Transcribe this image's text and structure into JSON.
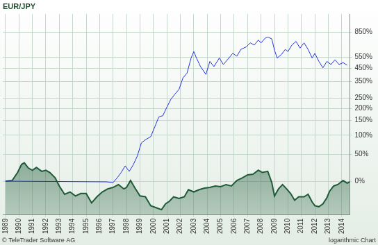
{
  "chart_data": {
    "type": "line",
    "title": "EUR/JPY",
    "annotations": [
      "© TeleTrader Software AG",
      "logarithmic Chart"
    ],
    "log": "y",
    "grid": true,
    "xlim": [
      1988.8,
      2014.6
    ],
    "xticks": [
      1989,
      1990,
      1991,
      1992,
      1993,
      1994,
      1995,
      1996,
      1997,
      1998,
      1999,
      2000,
      2001,
      2002,
      2003,
      2004,
      2005,
      2006,
      2007,
      2008,
      2009,
      2010,
      2011,
      2012,
      2013,
      2014
    ],
    "ylim": [
      -40,
      1150
    ],
    "yticks": [
      {
        "value": 0,
        "label": "0%"
      },
      {
        "value": 50,
        "label": "50%"
      },
      {
        "value": 100,
        "label": "100%"
      },
      {
        "value": 150,
        "label": "150%"
      },
      {
        "value": 200,
        "label": "200%"
      },
      {
        "value": 250,
        "label": "250%"
      },
      {
        "value": 350,
        "label": "350%"
      },
      {
        "value": 450,
        "label": "450%"
      },
      {
        "value": 550,
        "label": "550%"
      },
      {
        "value": 850,
        "label": "850%"
      }
    ],
    "series": [
      {
        "type": "line",
        "color": "#2233dd",
        "x": [
          1989.0,
          1996.5,
          1997.0,
          1997.3,
          1997.6,
          1997.9,
          1998.2,
          1998.5,
          1998.8,
          1999.1,
          1999.4,
          1999.8,
          2000.1,
          2000.4,
          2000.7,
          2001.0,
          2001.3,
          2001.6,
          2001.9,
          2002.2,
          2002.5,
          2002.8,
          2003.0,
          2003.2,
          2003.5,
          2003.9,
          2004.2,
          2004.5,
          2004.9,
          2005.2,
          2005.5,
          2005.9,
          2006.2,
          2006.5,
          2006.9,
          2007.2,
          2007.5,
          2007.8,
          2008.0,
          2008.3,
          2008.5,
          2008.8,
          2009.0,
          2009.2,
          2009.5,
          2009.8,
          2010.0,
          2010.3,
          2010.6,
          2010.9,
          2011.2,
          2011.5,
          2011.8,
          2012.0,
          2012.3,
          2012.6,
          2012.9,
          2013.2,
          2013.5,
          2013.8,
          2014.1,
          2014.4
        ],
        "values": [
          0,
          -1,
          -2,
          5,
          14,
          26,
          16,
          28,
          46,
          78,
          87,
          96,
          127,
          164,
          169,
          206,
          245,
          273,
          300,
          377,
          412,
          543,
          609,
          543,
          465,
          402,
          511,
          465,
          543,
          483,
          526,
          590,
          561,
          632,
          661,
          708,
          683,
          744,
          708,
          767,
          783,
          758,
          624,
          543,
          576,
          632,
          609,
          683,
          726,
          647,
          708,
          632,
          543,
          590,
          511,
          455,
          511,
          483,
          526,
          483,
          500,
          477
        ]
      },
      {
        "type": "area",
        "color": "#1e5a37",
        "x": [
          1989.0,
          1989.5,
          1989.9,
          1990.2,
          1990.4,
          1990.7,
          1991.0,
          1991.3,
          1991.7,
          1992.0,
          1992.3,
          1992.7,
          1993.0,
          1993.4,
          1993.8,
          1994.2,
          1994.6,
          1995.0,
          1995.4,
          1995.8,
          1996.2,
          1996.6,
          1997.0,
          1997.4,
          1997.8,
          1998.0,
          1998.3,
          1998.6,
          1999.0,
          1999.4,
          1999.8,
          2000.2,
          2000.6,
          2000.9,
          2001.2,
          2001.5,
          2001.9,
          2002.3,
          2002.6,
          2003.0,
          2003.4,
          2003.8,
          2004.2,
          2004.6,
          2005.0,
          2005.4,
          2005.8,
          2006.2,
          2006.6,
          2007.0,
          2007.4,
          2007.8,
          2008.1,
          2008.5,
          2008.8,
          2009.0,
          2009.3,
          2009.6,
          2009.9,
          2010.2,
          2010.5,
          2010.8,
          2011.2,
          2011.5,
          2011.8,
          2012.0,
          2012.3,
          2012.6,
          2012.9,
          2013.1,
          2013.4,
          2013.7,
          2013.9,
          2014.1,
          2014.4,
          2014.6
        ],
        "values": [
          0,
          1,
          14,
          29,
          32,
          22,
          18,
          23,
          16,
          18,
          14,
          5,
          -7,
          -18,
          -15,
          -20,
          -17,
          -17,
          -28,
          -21,
          -15,
          -11,
          -9,
          -5,
          -11,
          -9,
          1,
          -9,
          -20,
          -21,
          -31,
          -33,
          -35,
          -29,
          -26,
          -21,
          -23,
          -21,
          -12,
          -15,
          -12,
          -10,
          -9,
          -7,
          -8,
          -5,
          -7,
          1,
          5,
          10,
          11,
          18,
          14,
          16,
          -2,
          -20,
          -11,
          -5,
          -11,
          -17,
          -25,
          -21,
          -21,
          -18,
          -27,
          -31,
          -32,
          -29,
          -22,
          -14,
          -7,
          -5,
          -2,
          1,
          -3,
          -1
        ]
      }
    ]
  }
}
